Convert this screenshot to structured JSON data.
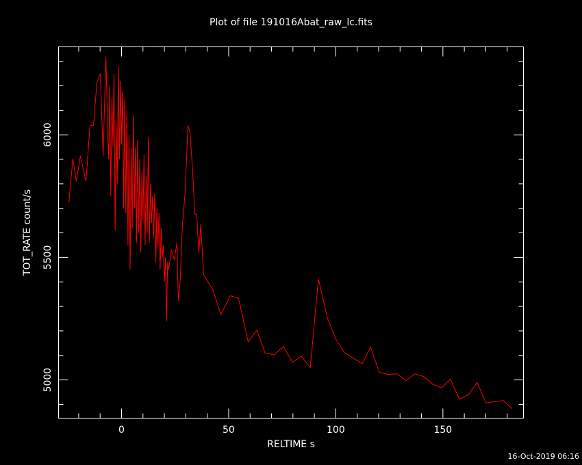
{
  "chart_data": {
    "type": "line",
    "title": "Plot of file 191016Abat_raw_lc.fits",
    "x_label": "RELTIME  s",
    "y_label": "TOT_RATE  count/s",
    "footer": "16-Oct-2019 06:16",
    "color": "#ff0000",
    "xlim": [
      -29.4,
      187.6
    ],
    "ylim": [
      4844,
      6359
    ],
    "xticks": [
      0,
      50,
      100,
      150
    ],
    "yticks": [
      5000,
      5500,
      6000
    ],
    "xminorticks": [
      -20,
      -10,
      10,
      20,
      30,
      40,
      60,
      70,
      80,
      90,
      110,
      120,
      130,
      140,
      160,
      170,
      180
    ],
    "yminorticks": [
      4900,
      5100,
      5200,
      5300,
      5400,
      5600,
      5700,
      5800,
      5900,
      6100,
      6200,
      6300
    ],
    "x": [
      -24.6,
      -22.7,
      -21.1,
      -19.2,
      -16.6,
      -14.7,
      -13.1,
      -11.5,
      -9.9,
      -8.6,
      -7.3,
      -6.4,
      -6.0,
      -5.5,
      -5.0,
      -4.5,
      -4.0,
      -3.5,
      -3.0,
      -2.5,
      -2.0,
      -1.5,
      -1.0,
      -0.5,
      0,
      0.5,
      1.0,
      1.5,
      2.0,
      2.5,
      3.0,
      3.5,
      4.0,
      4.5,
      5.0,
      5.5,
      6.0,
      6.5,
      7.0,
      7.5,
      8.0,
      8.5,
      9.0,
      9.5,
      10.0,
      10.5,
      11.0,
      11.5,
      12.0,
      12.5,
      13.0,
      13.5,
      14.0,
      14.5,
      15.0,
      15.5,
      16.0,
      16.5,
      17.0,
      17.5,
      18.0,
      18.5,
      19.0,
      19.5,
      20.0,
      20.5,
      21.0,
      21.5,
      22.0,
      23.3,
      24.6,
      25.9,
      26.5,
      27.4,
      28.4,
      29.7,
      31.0,
      32.0,
      33.2,
      34.2,
      35.1,
      36.1,
      37.0,
      38.3,
      42.8,
      46.3,
      50.8,
      54.6,
      59.1,
      63.2,
      67.0,
      71.2,
      75.6,
      79.8,
      83.9,
      88.1,
      91.9,
      96.1,
      100.0,
      104.1,
      108.2,
      112.4,
      116.2,
      120.3,
      124.5,
      128.6,
      132.8,
      136.9,
      141.0,
      145.2,
      149.4,
      153.5,
      157.7,
      161.8,
      166.0,
      170.1,
      174.0,
      178.1,
      182.3
    ],
    "values": [
      5722,
      5903,
      5811,
      5914,
      5811,
      6039,
      6039,
      6214,
      6251,
      5914,
      6320,
      5992,
      5900,
      6200,
      5750,
      6150,
      5950,
      6250,
      5610,
      6050,
      5800,
      6280,
      5900,
      6220,
      5960,
      6180,
      5700,
      6150,
      5680,
      6100,
      5550,
      6000,
      5450,
      5950,
      5620,
      6080,
      5700,
      5950,
      5560,
      5980,
      5600,
      5900,
      5520,
      5850,
      5650,
      5920,
      5550,
      5830,
      5600,
      5990,
      5560,
      5800,
      5640,
      5750,
      5580,
      5760,
      5480,
      5700,
      5540,
      5680,
      5450,
      5620,
      5500,
      5550,
      5400,
      5500,
      5240,
      5480,
      5450,
      5532,
      5490,
      5560,
      5323,
      5407,
      5630,
      5769,
      6039,
      6006,
      5852,
      5677,
      5677,
      5518,
      5635,
      5429,
      5365,
      5267,
      5343,
      5334,
      5156,
      5203,
      5109,
      5103,
      5136,
      5072,
      5097,
      5050,
      5412,
      5253,
      5167,
      5111,
      5089,
      5067,
      5134,
      5031,
      5022,
      5025,
      4997,
      5025,
      5014,
      4983,
      4967,
      5003,
      4922,
      4939,
      4989,
      4906,
      4911,
      4916,
      4883
    ]
  }
}
